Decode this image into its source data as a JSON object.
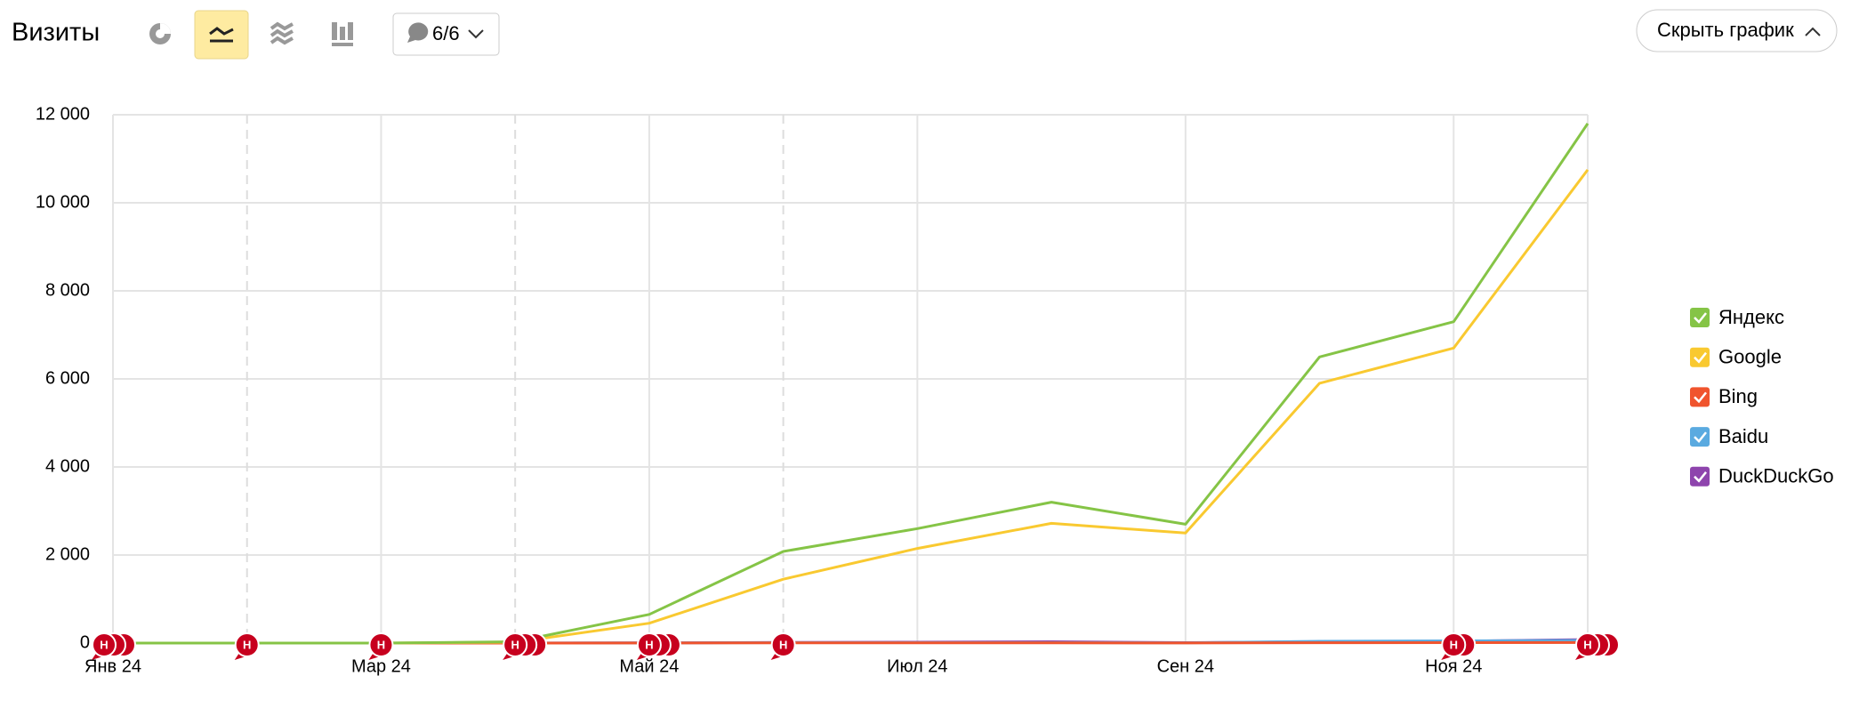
{
  "ui": {
    "title": "Визиты",
    "filter_button": "6/6",
    "hide_button": "Скрыть график"
  },
  "chart_data": {
    "type": "line",
    "categories": [
      "Янв 24",
      null,
      "Мар 24",
      null,
      "Май 24",
      null,
      "Июл 24",
      null,
      "Сен 24",
      null,
      "Ноя 24",
      null
    ],
    "series": [
      {
        "name": "Яндекс",
        "color": "#85c446",
        "values": [
          0,
          0,
          0,
          30,
          650,
          2080,
          2600,
          3200,
          2700,
          6500,
          7300,
          11800
        ]
      },
      {
        "name": "Google",
        "color": "#f9c930",
        "values": [
          0,
          0,
          0,
          20,
          450,
          1450,
          2150,
          2720,
          2500,
          5900,
          6700,
          10750
        ]
      },
      {
        "name": "Bing",
        "color": "#f0542d",
        "values": [
          0,
          0,
          0,
          0,
          2,
          5,
          5,
          5,
          3,
          8,
          10,
          12
        ]
      },
      {
        "name": "Baidu",
        "color": "#5aaae0",
        "values": [
          0,
          0,
          0,
          0,
          5,
          10,
          10,
          10,
          5,
          40,
          50,
          60
        ]
      },
      {
        "name": "DuckDuckGo",
        "color": "#8e44ad",
        "values": [
          0,
          0,
          0,
          0,
          5,
          15,
          20,
          30,
          10,
          30,
          40,
          80
        ]
      }
    ],
    "ylim": [
      0,
      12000
    ],
    "yticks": [
      0,
      {
        "value": 2000,
        "label": "2 000"
      },
      {
        "value": 4000,
        "label": "4 000"
      },
      {
        "value": 6000,
        "label": "6 000"
      },
      {
        "value": 8000,
        "label": "8 000"
      },
      {
        "value": 10000,
        "label": "10 000"
      },
      {
        "value": 12000,
        "label": "12 000"
      }
    ],
    "grid": true,
    "legend": "right",
    "annotations": [
      {
        "x": 0,
        "count": 3,
        "label": "Н"
      },
      {
        "x": 1,
        "count": 1,
        "label": "Н"
      },
      {
        "x": 2,
        "count": 1,
        "label": "Н"
      },
      {
        "x": 3,
        "count": 3,
        "label": "Н"
      },
      {
        "x": 4,
        "count": 3,
        "label": "Н"
      },
      {
        "x": 5,
        "count": 1,
        "label": "Н"
      },
      {
        "x": 10,
        "count": 2,
        "label": "Н"
      },
      {
        "x": 11,
        "count": 3,
        "label": "Н"
      }
    ]
  }
}
